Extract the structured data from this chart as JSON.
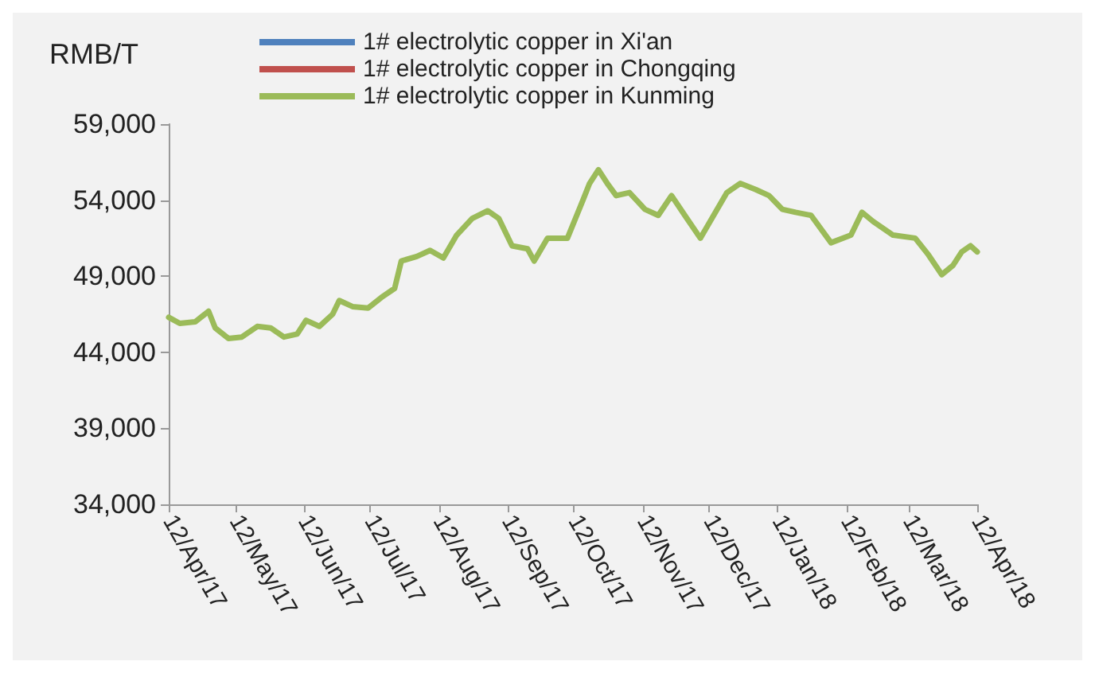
{
  "chart_data": {
    "type": "line",
    "ylabel": "RMB/T",
    "x": [
      "2017-04-12",
      "2017-04-17",
      "2017-04-24",
      "2017-04-30",
      "2017-05-03",
      "2017-05-09",
      "2017-05-15",
      "2017-05-22",
      "2017-05-28",
      "2017-06-03",
      "2017-06-09",
      "2017-06-13",
      "2017-06-19",
      "2017-06-25",
      "2017-06-28",
      "2017-07-04",
      "2017-07-11",
      "2017-07-17",
      "2017-07-23",
      "2017-07-26",
      "2017-08-02",
      "2017-08-08",
      "2017-08-14",
      "2017-08-20",
      "2017-08-27",
      "2017-09-03",
      "2017-09-08",
      "2017-09-14",
      "2017-09-21",
      "2017-09-24",
      "2017-09-30",
      "2017-10-09",
      "2017-10-16",
      "2017-10-19",
      "2017-10-23",
      "2017-10-27",
      "2017-10-31",
      "2017-11-06",
      "2017-11-13",
      "2017-11-19",
      "2017-11-25",
      "2017-12-01",
      "2017-12-08",
      "2017-12-14",
      "2017-12-20",
      "2017-12-26",
      "2018-01-02",
      "2018-01-08",
      "2018-01-14",
      "2018-01-20",
      "2018-01-27",
      "2018-02-05",
      "2018-02-14",
      "2018-02-19",
      "2018-02-24",
      "2018-03-05",
      "2018-03-15",
      "2018-03-21",
      "2018-03-27",
      "2018-04-01",
      "2018-04-05",
      "2018-04-09",
      "2018-04-12"
    ],
    "series": [
      {
        "name": "1# electrolytic copper in Xi'an",
        "color": "#4f81bd",
        "values": [
          null,
          null,
          null,
          null,
          null,
          null,
          null,
          null,
          null,
          null,
          null,
          null,
          null,
          null,
          null,
          null,
          null,
          null,
          null,
          null,
          null,
          null,
          null,
          null,
          null,
          null,
          null,
          null,
          null,
          null,
          null,
          null,
          null,
          null,
          null,
          null,
          null,
          null,
          null,
          null,
          null,
          null,
          null,
          null,
          null,
          null,
          null,
          null,
          null,
          null,
          null,
          null,
          null,
          null,
          null,
          null,
          null,
          null,
          null,
          null,
          null,
          null,
          null
        ]
      },
      {
        "name": "1# electrolytic copper in Chongqing",
        "color": "#c0504d",
        "values": [
          null,
          null,
          null,
          null,
          null,
          null,
          null,
          null,
          null,
          null,
          null,
          null,
          null,
          null,
          null,
          null,
          null,
          null,
          null,
          null,
          null,
          null,
          null,
          null,
          null,
          null,
          null,
          null,
          null,
          null,
          null,
          null,
          null,
          null,
          null,
          null,
          null,
          null,
          null,
          null,
          null,
          null,
          null,
          null,
          null,
          null,
          null,
          null,
          null,
          null,
          null,
          null,
          null,
          null,
          null,
          null,
          null,
          null,
          null,
          null,
          null,
          null,
          null
        ]
      },
      {
        "name": "1# electrolytic copper in Kunming",
        "color": "#9bbb59",
        "values": [
          46300,
          45900,
          46000,
          46700,
          45600,
          44900,
          45000,
          45700,
          45600,
          45000,
          45200,
          46100,
          45700,
          46500,
          47400,
          47000,
          46900,
          47600,
          48200,
          50000,
          50300,
          50700,
          50200,
          51700,
          52800,
          53300,
          52800,
          51000,
          50800,
          50000,
          51500,
          51500,
          54000,
          55100,
          56000,
          55100,
          54300,
          54500,
          53400,
          53000,
          54300,
          53000,
          51500,
          53000,
          54500,
          55100,
          54700,
          54300,
          53400,
          53200,
          53000,
          51200,
          51700,
          53200,
          52600,
          51700,
          51500,
          50400,
          49100,
          49700,
          50600,
          51000,
          50600
        ]
      }
    ],
    "xlim": [
      "2017-04-12",
      "2018-04-12"
    ],
    "xticks": [
      {
        "value": "2017-04-12",
        "label": "12/Apr/17"
      },
      {
        "value": "2017-05-12",
        "label": "12/May/17"
      },
      {
        "value": "2017-06-12",
        "label": "12/Jun/17"
      },
      {
        "value": "2017-07-12",
        "label": "12/Jul/17"
      },
      {
        "value": "2017-08-12",
        "label": "12/Aug/17"
      },
      {
        "value": "2017-09-12",
        "label": "12/Sep/17"
      },
      {
        "value": "2017-10-12",
        "label": "12/Oct/17"
      },
      {
        "value": "2017-11-12",
        "label": "12/Nov/17"
      },
      {
        "value": "2017-12-12",
        "label": "12/Dec/17"
      },
      {
        "value": "2018-01-12",
        "label": "12/Jan/18"
      },
      {
        "value": "2018-02-12",
        "label": "12/Feb/18"
      },
      {
        "value": "2018-03-12",
        "label": "12/Mar/18"
      },
      {
        "value": "2018-04-12",
        "label": "12/Apr/18"
      }
    ],
    "ylim": [
      34000,
      59000
    ],
    "yticks": [
      {
        "value": 34000,
        "label": "34,000"
      },
      {
        "value": 39000,
        "label": "39,000"
      },
      {
        "value": 44000,
        "label": "44,000"
      },
      {
        "value": 49000,
        "label": "49,000"
      },
      {
        "value": 54000,
        "label": "54,000"
      },
      {
        "value": 59000,
        "label": "59,000"
      }
    ],
    "grid": false,
    "legend": "top",
    "marker": "none",
    "line_style": "solid"
  }
}
